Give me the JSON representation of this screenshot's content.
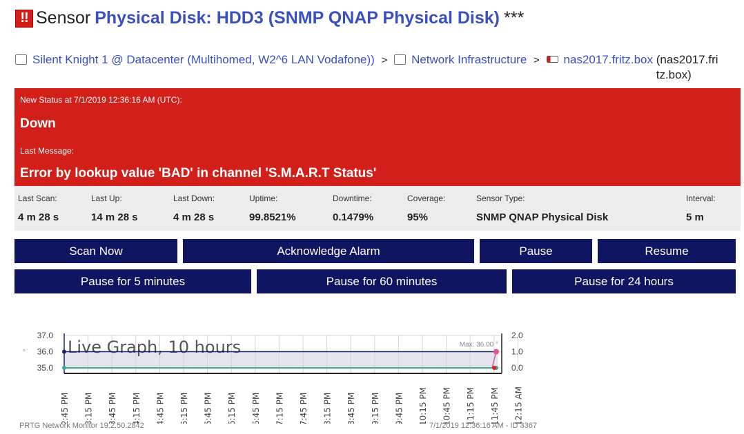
{
  "header": {
    "prefix": "Sensor",
    "sensor_name": "Physical Disk: HDD3 (SNMP QNAP Physical Disk)",
    "stars": "***",
    "status_icon": "alarm-icon"
  },
  "breadcrumb": [
    {
      "label": "Silent Knight 1 @ Datacenter (Multihomed, W2^6 LAN Vodafone))",
      "icon": "probe-icon"
    },
    {
      "label": "Network Infrastructure",
      "icon": "group-icon"
    },
    {
      "label": "nas2017.fritz.box",
      "icon": "device-icon",
      "suffix": "(nas2017.fritz.box)"
    }
  ],
  "separator": ">",
  "status": {
    "heading": "New Status at 7/1/2019 12:36:16 AM (UTC):",
    "value": "Down",
    "message_label": "Last Message:",
    "message": "Error by lookup value 'BAD' in channel 'S.M.A.R.T Status'",
    "color": "#d21f1a"
  },
  "stats": [
    {
      "label": "Last Scan:",
      "value": "4 m 28 s"
    },
    {
      "label": "Last Up:",
      "value": "14 m 28 s"
    },
    {
      "label": "Last Down:",
      "value": "4 m 28 s"
    },
    {
      "label": "Uptime:",
      "value": "99.8521%"
    },
    {
      "label": "Downtime:",
      "value": "0.1479%"
    },
    {
      "label": "Coverage:",
      "value": "95%"
    },
    {
      "label": "Sensor Type:",
      "value": "SNMP QNAP Physical Disk"
    },
    {
      "label": "Interval:",
      "value": "5 m"
    }
  ],
  "buttons": {
    "scan_now": "Scan Now",
    "acknowledge": "Acknowledge Alarm",
    "pause": "Pause",
    "resume": "Resume",
    "pause5": "Pause for 5 minutes",
    "pause60": "Pause for 60 minutes",
    "pause24": "Pause for 24 hours"
  },
  "chart_data": {
    "type": "line",
    "title": "Live Graph, 10 hours",
    "annotation": "Max: 36.00 °",
    "left_unit": "°",
    "ylim_left": [
      35.0,
      37.0
    ],
    "yticks_left": [
      "37.0",
      "36.0",
      "35.0"
    ],
    "ylim_right": [
      0.0,
      2.0
    ],
    "yticks_right": [
      "2.0",
      "1.0",
      "0.0"
    ],
    "xticks": [
      "2:45 PM",
      "3:15 PM",
      "3:45 PM",
      "4:15 PM",
      "4:45 PM",
      "5:15 PM",
      "5:45 PM",
      "6:15 PM",
      "6:45 PM",
      "7:15 PM",
      "7:45 PM",
      "8:15 PM",
      "8:45 PM",
      "9:15 PM",
      "9:45 PM",
      "10:15 PM",
      "10:45 PM",
      "11:15 PM",
      "11:45 PM",
      "12:15 AM"
    ],
    "grid": true,
    "series": [
      {
        "axis": "left",
        "color": "#1a2466",
        "x": [
          "2:45 PM",
          "12:36 AM"
        ],
        "values": [
          36.0,
          36.0
        ]
      },
      {
        "axis": "left",
        "color": "#3aa69a",
        "x": [
          "2:45 PM",
          "12:36 AM"
        ],
        "values": [
          35.0,
          35.0
        ]
      },
      {
        "axis": "right",
        "color": "#e0559a",
        "x": [
          "12:26 AM",
          "12:36 AM"
        ],
        "values": [
          0.0,
          1.0
        ]
      },
      {
        "axis": "right",
        "color": "#e02020",
        "x": [
          "12:36 AM"
        ],
        "values": [
          0.0
        ]
      }
    ]
  },
  "footer": {
    "version": "PRTG Network Monitor 19.2.50.2842",
    "timestamp": "7/1/2019 12:36:16 AM - ID 3367"
  }
}
